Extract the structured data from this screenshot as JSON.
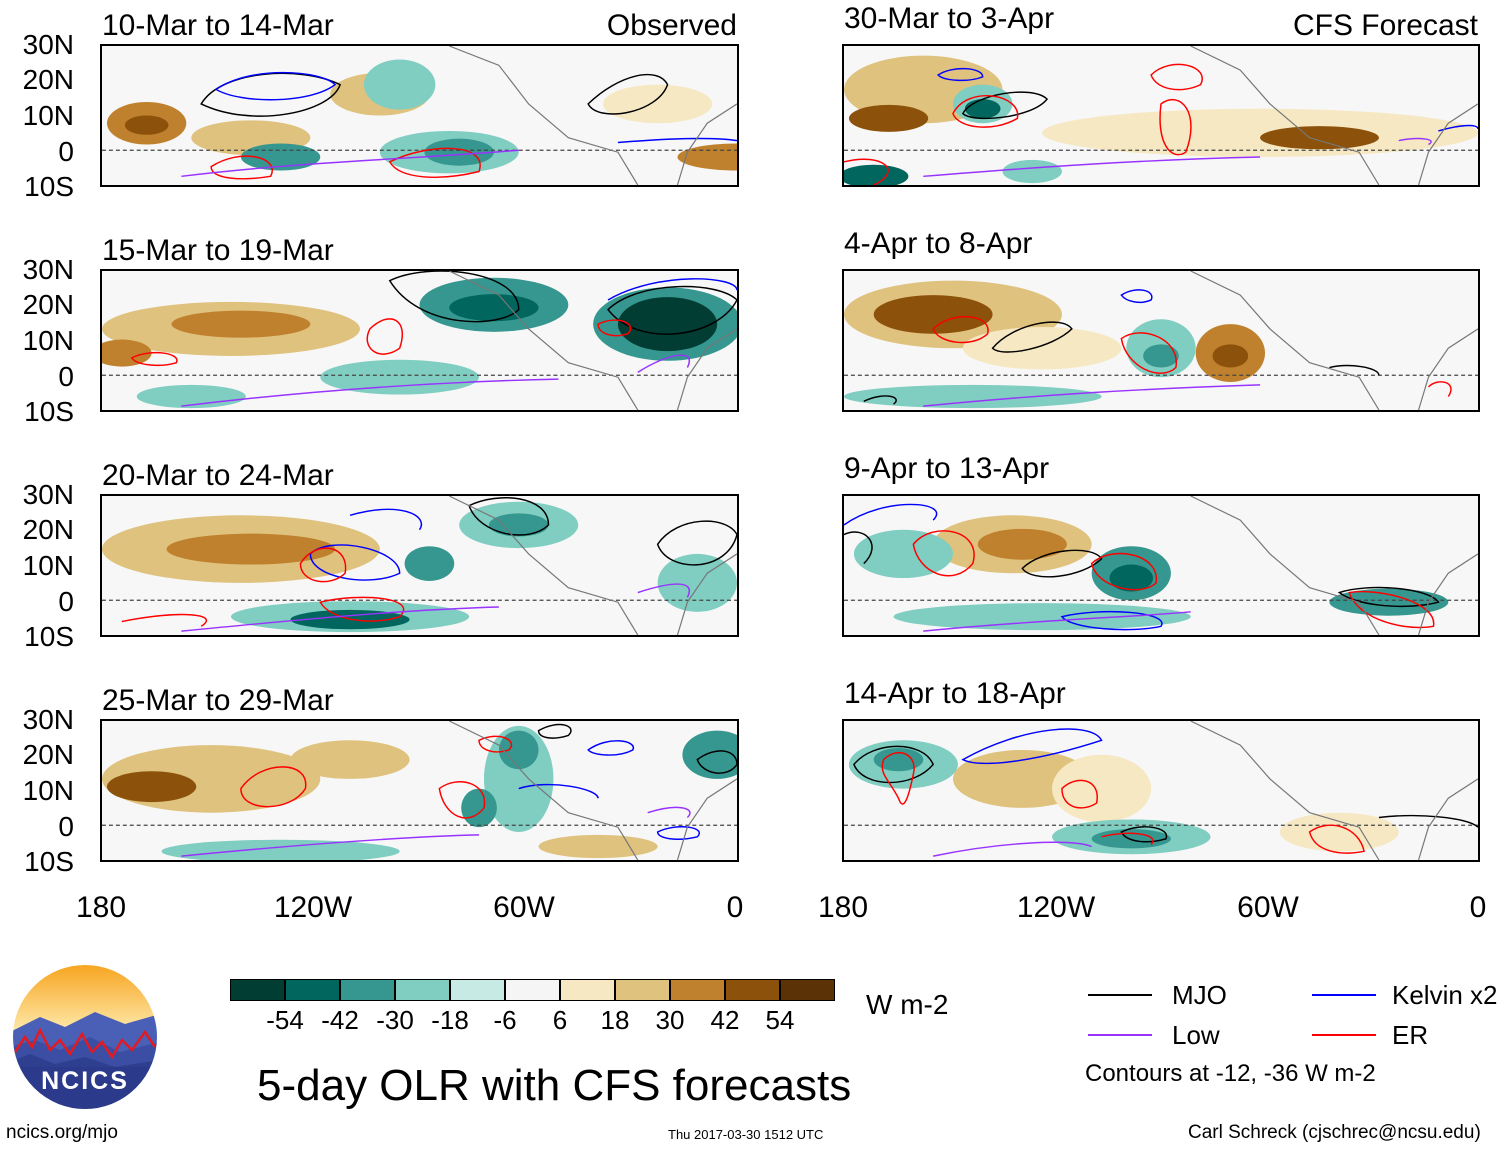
{
  "observed_label": "Observed",
  "forecast_label": "CFS Forecast",
  "lat_labels": [
    "30N",
    "20N",
    "10N",
    "0",
    "10S"
  ],
  "lon_labels": [
    "180",
    "120W",
    "60W",
    "0"
  ],
  "panels": [
    {
      "title": "10-Mar to 14-Mar"
    },
    {
      "title": "15-Mar to 19-Mar"
    },
    {
      "title": "20-Mar to 24-Mar"
    },
    {
      "title": "25-Mar to 29-Mar"
    },
    {
      "title": "30-Mar to 3-Apr"
    },
    {
      "title": "4-Apr to 8-Apr"
    },
    {
      "title": "9-Apr to 13-Apr"
    },
    {
      "title": "14-Apr to 18-Apr"
    }
  ],
  "colorbar": {
    "colors": [
      "#013d33",
      "#01665e",
      "#35978f",
      "#80cdc1",
      "#c7eae5",
      "#f5f5f5",
      "#f6e8c3",
      "#dfc27d",
      "#bf812d",
      "#8c510a",
      "#5a3206"
    ],
    "ticks": [
      "-54",
      "-42",
      "-30",
      "-18",
      "-6",
      "6",
      "18",
      "30",
      "42",
      "54"
    ],
    "units": "W m-2"
  },
  "legend": {
    "items": [
      {
        "name": "MJO",
        "color": "#000000"
      },
      {
        "name": "Kelvin x2",
        "color": "#0000ff"
      },
      {
        "name": "Low",
        "color": "#9933ff"
      },
      {
        "name": "ER",
        "color": "#ff0000"
      }
    ],
    "note": "Contours at -12, -36 W m-2"
  },
  "main_title": "5-day OLR with CFS forecasts",
  "logo_text": "NCICS",
  "website": "ncics.org/mjo",
  "timestamp": "Thu 2017-03-30 1512 UTC",
  "author": "Carl Schreck (cjschrec@ncsu.edu)"
}
